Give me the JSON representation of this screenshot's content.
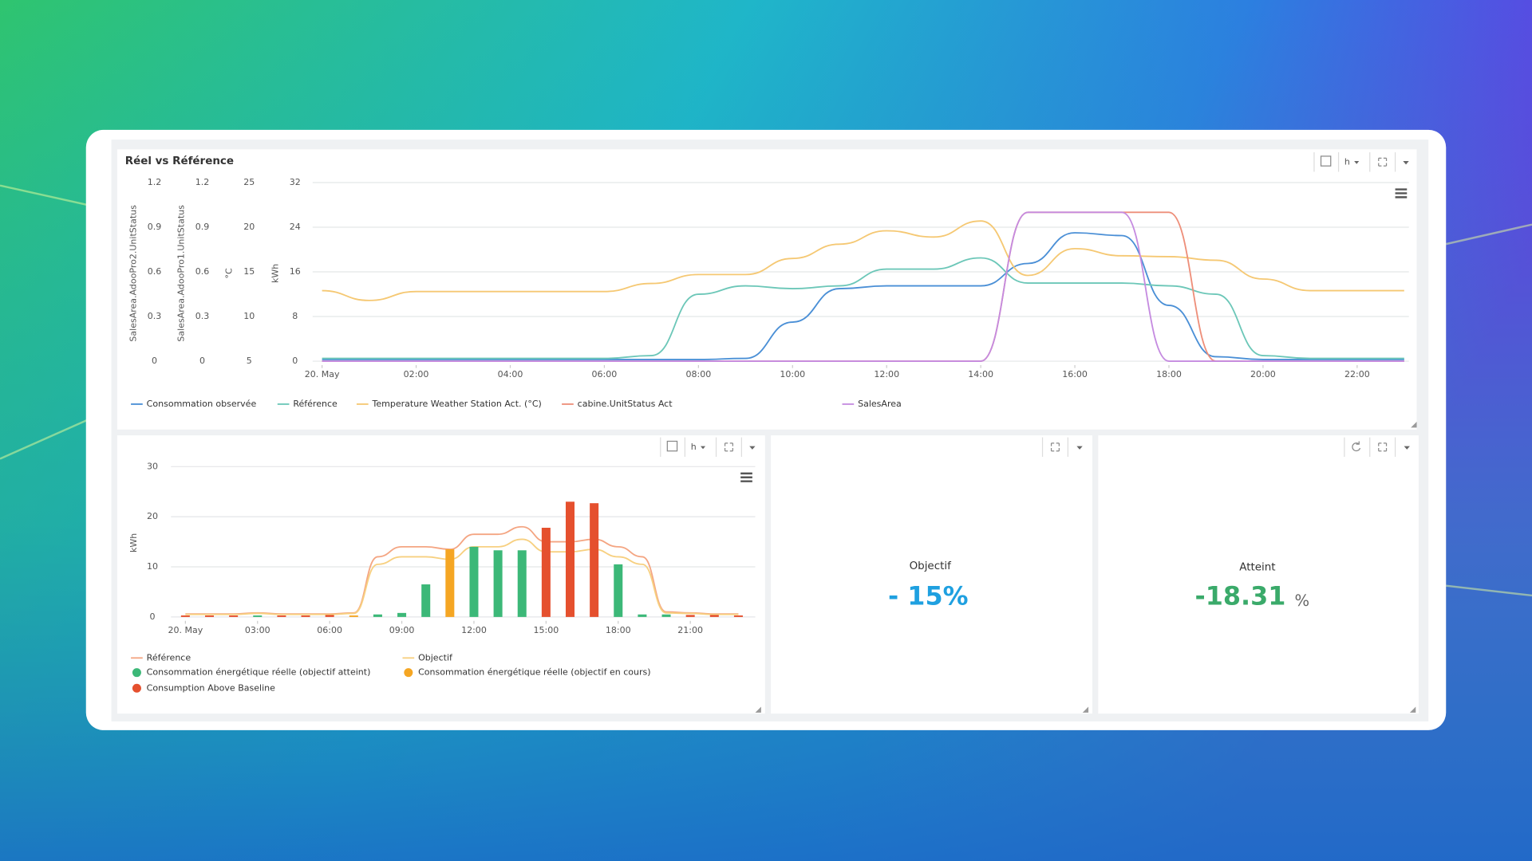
{
  "chart_data": [
    {
      "type": "line",
      "title": "Réel vs Référence",
      "x": [
        0,
        1,
        2,
        3,
        4,
        5,
        6,
        7,
        8,
        9,
        10,
        11,
        12,
        13,
        14,
        15,
        16,
        17,
        18,
        19,
        20,
        21,
        22,
        23
      ],
      "xlim": [
        -0.2,
        23.1
      ],
      "xticks": [
        {
          "value": 0,
          "label": "20. May"
        },
        {
          "value": 2,
          "label": "02:00"
        },
        {
          "value": 4,
          "label": "04:00"
        },
        {
          "value": 6,
          "label": "06:00"
        },
        {
          "value": 8,
          "label": "08:00"
        },
        {
          "value": 10,
          "label": "10:00"
        },
        {
          "value": 12,
          "label": "12:00"
        },
        {
          "value": 14,
          "label": "14:00"
        },
        {
          "value": 16,
          "label": "16:00"
        },
        {
          "value": 18,
          "label": "18:00"
        },
        {
          "value": 20,
          "label": "20:00"
        },
        {
          "value": 22,
          "label": "22:00"
        }
      ],
      "yaxes": [
        {
          "label": "SalesArea.AdooPro2.UnitStatus",
          "lim": [
            0,
            1.2
          ],
          "ticks": [
            0,
            0.3,
            0.6,
            0.9,
            1.2
          ]
        },
        {
          "label": "SalesArea.AdooPro1.UnitStatus",
          "lim": [
            0,
            1.2
          ],
          "ticks": [
            0,
            0.3,
            0.6,
            0.9,
            1.2
          ]
        },
        {
          "label": "°C",
          "lim": [
            5,
            25
          ],
          "ticks": [
            5,
            10,
            15,
            20,
            25
          ]
        },
        {
          "label": "kWh",
          "lim": [
            0,
            32
          ],
          "ticks": [
            0,
            8,
            16,
            24,
            32
          ]
        }
      ],
      "grid": true,
      "series": [
        {
          "name": "Consommation observée",
          "color": "#4a8fd6",
          "axis": 3,
          "values": [
            0.3,
            0.3,
            0.3,
            0.3,
            0.3,
            0.3,
            0.3,
            0.3,
            0.3,
            0.5,
            7,
            13,
            13.5,
            13.5,
            13.5,
            17.5,
            23,
            22.5,
            10,
            0.8,
            0.3,
            0.3,
            0.3,
            0.3
          ]
        },
        {
          "name": "Référence",
          "color": "#6cc7b8",
          "axis": 3,
          "values": [
            0.5,
            0.5,
            0.5,
            0.5,
            0.5,
            0.5,
            0.5,
            1,
            12,
            13.5,
            13,
            13.5,
            16.5,
            16.5,
            18.5,
            14,
            14,
            14,
            13.5,
            12,
            1,
            0.5,
            0.5,
            0.5
          ]
        },
        {
          "name": "Temperature Weather Station Act. (°C)",
          "color": "#f5c873",
          "axis": 2,
          "values": [
            12.9,
            11.8,
            12.8,
            12.8,
            12.8,
            12.8,
            12.8,
            13.7,
            14.7,
            14.7,
            16.5,
            18.1,
            19.6,
            18.9,
            20.7,
            14.6,
            17.6,
            16.8,
            16.7,
            16.3,
            14.2,
            12.9,
            12.9,
            12.9
          ]
        },
        {
          "name": "cabine.UnitStatus Act",
          "color": "#ee8f7a",
          "axis": 1,
          "values": [
            0,
            0,
            0,
            0,
            0,
            0,
            0,
            0,
            0,
            0,
            0,
            0,
            0,
            0,
            0,
            1,
            1,
            1,
            1,
            0,
            0,
            0,
            0,
            0
          ]
        },
        {
          "name": "SalesArea",
          "color": "#c58be0",
          "axis": 0,
          "values": [
            0,
            0,
            0,
            0,
            0,
            0,
            0,
            0,
            0,
            0,
            0,
            0,
            0,
            0,
            0,
            1,
            1,
            1,
            0,
            0,
            0,
            0,
            0,
            0
          ]
        }
      ]
    },
    {
      "type": "bar",
      "x": [
        0,
        1,
        2,
        3,
        4,
        5,
        6,
        7,
        8,
        9,
        10,
        11,
        12,
        13,
        14,
        15,
        16,
        17,
        18,
        19,
        20,
        21,
        22,
        23
      ],
      "xlim": [
        -0.6,
        23.7
      ],
      "xticks": [
        {
          "value": 0,
          "label": "20. May"
        },
        {
          "value": 3,
          "label": "03:00"
        },
        {
          "value": 6,
          "label": "06:00"
        },
        {
          "value": 9,
          "label": "09:00"
        },
        {
          "value": 12,
          "label": "12:00"
        },
        {
          "value": 15,
          "label": "15:00"
        },
        {
          "value": 18,
          "label": "18:00"
        },
        {
          "value": 21,
          "label": "21:00"
        }
      ],
      "ylabel": "kWh",
      "ylim": [
        0,
        30
      ],
      "yticks": [
        0,
        10,
        20,
        30
      ],
      "grid": true,
      "series": [
        {
          "name": "Référence",
          "kind": "line",
          "color": "#f4a582",
          "values": [
            0.6,
            0.6,
            0.6,
            0.8,
            0.6,
            0.6,
            0.6,
            0.8,
            12,
            14,
            14,
            13.5,
            16.5,
            16.5,
            18,
            15,
            15,
            15.5,
            14,
            12,
            1,
            0.8,
            0.6,
            0.6
          ]
        },
        {
          "name": "Objectif",
          "kind": "line",
          "color": "#f7d080",
          "values": [
            0.5,
            0.5,
            0.5,
            0.7,
            0.5,
            0.5,
            0.5,
            0.7,
            10.5,
            12,
            12,
            11.5,
            14,
            14,
            15.5,
            13,
            13,
            13.5,
            12,
            10.5,
            0.8,
            0.7,
            0.5,
            0.5
          ]
        },
        {
          "name": "Consommation énergétique réelle (objectif atteint)",
          "kind": "bar",
          "color": "#3cb878",
          "values": [
            null,
            null,
            null,
            0.3,
            null,
            null,
            null,
            null,
            0.5,
            0.8,
            6.5,
            null,
            14,
            13.3,
            13.3,
            null,
            null,
            null,
            10.5,
            0.5,
            0.5,
            null,
            null,
            null
          ]
        },
        {
          "name": "Consommation énergétique réelle (objectif en cours)",
          "kind": "bar",
          "color": "#f5a623",
          "values": [
            null,
            null,
            null,
            null,
            null,
            null,
            null,
            0.3,
            null,
            null,
            null,
            13.5,
            null,
            null,
            null,
            null,
            null,
            null,
            null,
            null,
            null,
            null,
            null,
            null
          ]
        },
        {
          "name": "Consumption Above Baseline",
          "kind": "bar",
          "color": "#e5502e",
          "values": [
            0.3,
            0.3,
            0.3,
            null,
            0.3,
            0.3,
            0.4,
            null,
            null,
            null,
            null,
            null,
            null,
            null,
            null,
            17.8,
            23,
            22.7,
            null,
            null,
            null,
            0.4,
            0.4,
            0.3
          ]
        }
      ]
    }
  ],
  "toolbar": {
    "range_label": "h"
  },
  "kpis": [
    {
      "label": "Objectif",
      "value": "- 15%"
    },
    {
      "label": "Atteint",
      "value": "-18.31",
      "unit": "%"
    }
  ]
}
